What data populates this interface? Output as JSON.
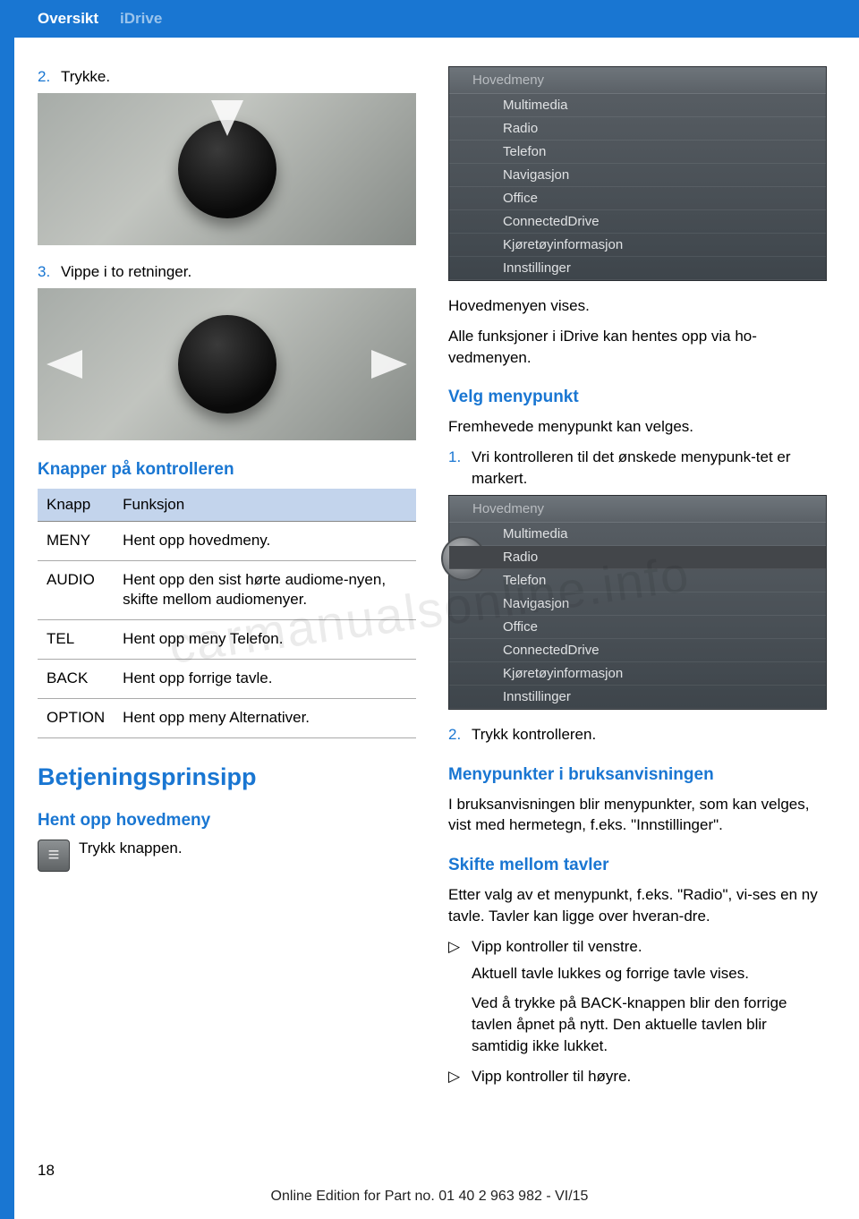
{
  "header": {
    "tab1": "Oversikt",
    "tab2": "iDrive"
  },
  "left": {
    "step2": {
      "num": "2.",
      "text": "Trykke."
    },
    "step3": {
      "num": "3.",
      "text": "Vippe i to retninger."
    },
    "knapper_heading": "Knapper på kontrolleren",
    "table": {
      "col1": "Knapp",
      "col2": "Funksjon",
      "rows": [
        [
          "MENY",
          "Hent opp hovedmeny."
        ],
        [
          "AUDIO",
          "Hent opp den sist hørte audiome‐nyen, skifte mellom audiomenyer."
        ],
        [
          "TEL",
          "Hent opp meny Telefon."
        ],
        [
          "BACK",
          "Hent opp forrige tavle."
        ],
        [
          "OPTION",
          "Hent opp meny Alternativer."
        ]
      ]
    },
    "h2": "Betjeningsprinsipp",
    "h3_hent": "Hent opp hovedmeny",
    "hent_text": "Trykk knappen."
  },
  "right": {
    "menu": {
      "title": "Hovedmeny",
      "items": [
        "Multimedia",
        "Radio",
        "Telefon",
        "Navigasjon",
        "Office",
        "ConnectedDrive",
        "Kjøretøyinformasjon",
        "Innstillinger"
      ]
    },
    "p1": "Hovedmenyen vises.",
    "p2": "Alle funksjoner i iDrive kan hentes opp via ho‐vedmenyen.",
    "h3_velg": "Velg menypunkt",
    "p3": "Fremhevede menypunkt kan velges.",
    "step1": {
      "num": "1.",
      "text": "Vri kontrolleren til det ønskede menypunk‐tet er markert."
    },
    "step2b": {
      "num": "2.",
      "text": "Trykk kontrolleren."
    },
    "h3_mp": "Menypunkter i bruksanvisningen",
    "p4": "I bruksanvisningen blir menypunkter, som kan velges, vist med hermetegn, f.eks. \"Innstillinger\".",
    "h3_sk": "Skifte mellom tavler",
    "p5": "Etter valg av et menypunkt, f.eks. \"Radio\", vi‐ses en ny tavle. Tavler kan ligge over hveran‐dre.",
    "b1": "Vipp kontroller til venstre.",
    "b1s1": "Aktuell tavle lukkes og forrige tavle vises.",
    "b1s2": "Ved å trykke på BACK-knappen blir den forrige tavlen åpnet på nytt. Den aktuelle tavlen blir samtidig ikke lukket.",
    "b2": "Vipp kontroller til høyre."
  },
  "page_num": "18",
  "footer": "Online Edition for Part no. 01 40 2 963 982 - VI/15",
  "watermark": "carmanualsonline.info"
}
